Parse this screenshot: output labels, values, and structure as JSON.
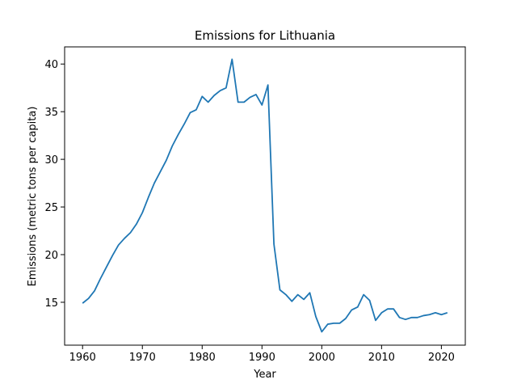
{
  "chart_data": {
    "type": "line",
    "title": "Emissions for Lithuania",
    "xlabel": "Year",
    "ylabel": "Emissions (metric tons per capita)",
    "xlim": [
      1957,
      2024
    ],
    "ylim": [
      10.5,
      41.8
    ],
    "xticks": [
      1960,
      1970,
      1980,
      1990,
      2000,
      2010,
      2020
    ],
    "yticks": [
      15,
      20,
      25,
      30,
      35,
      40
    ],
    "grid": false,
    "color": "#1f77b4",
    "series": [
      {
        "x": [
          1960,
          1961,
          1962,
          1963,
          1964,
          1965,
          1966,
          1967,
          1968,
          1969,
          1970,
          1971,
          1972,
          1973,
          1974,
          1975,
          1976,
          1977,
          1978,
          1979,
          1980,
          1981,
          1982,
          1983,
          1984,
          1985,
          1986,
          1987,
          1988,
          1989,
          1990,
          1991,
          1992,
          1993,
          1994,
          1995,
          1996,
          1997,
          1998,
          1999,
          2000,
          2001,
          2002,
          2003,
          2004,
          2005,
          2006,
          2007,
          2008,
          2009,
          2010,
          2011,
          2012,
          2013,
          2014,
          2015,
          2016,
          2017,
          2018,
          2019,
          2020,
          2021
        ],
        "values": [
          14.9,
          15.4,
          16.2,
          17.5,
          18.7,
          19.9,
          21.0,
          21.7,
          22.3,
          23.2,
          24.4,
          26.0,
          27.5,
          28.7,
          29.9,
          31.4,
          32.6,
          33.7,
          34.9,
          35.2,
          36.6,
          36.0,
          36.7,
          37.2,
          37.5,
          40.5,
          36.0,
          36.0,
          36.5,
          36.8,
          35.7,
          37.8,
          21.1,
          16.3,
          15.8,
          15.1,
          15.8,
          15.3,
          16.0,
          13.5,
          11.9,
          12.7,
          12.8,
          12.8,
          13.3,
          14.2,
          14.5,
          15.8,
          15.2,
          13.1,
          13.9,
          14.3,
          14.3,
          13.4,
          13.2,
          13.4,
          13.4,
          13.6,
          13.7,
          13.9,
          13.7,
          13.9
        ]
      }
    ]
  }
}
